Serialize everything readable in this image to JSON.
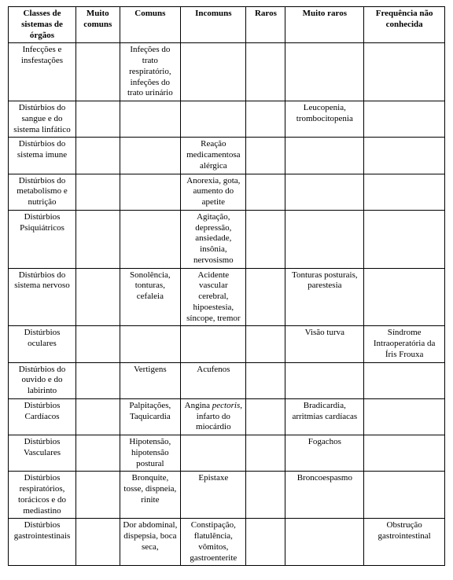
{
  "table": {
    "background_color": "#ffffff",
    "border_color": "#000000",
    "text_color": "#000000",
    "font_family": "Times New Roman",
    "header_fontsize": 11,
    "cell_fontsize": 11,
    "columns": [
      "Classes de sistemas de órgãos",
      "Muito comuns",
      "Comuns",
      "Incomuns",
      "Raros",
      "Muito raros",
      "Frequência não conhecida"
    ],
    "column_widths_pct": [
      15.5,
      10,
      14,
      15,
      9,
      18,
      18.5
    ],
    "rows": [
      {
        "class": "Infecções e insfestações",
        "muito_comuns": "",
        "comuns": "Infeções do trato respiratório, infeções do trato urinário",
        "incomuns": "",
        "raros": "",
        "muito_raros": "",
        "freq_nao_conhecida": ""
      },
      {
        "class": "Distúrbios do sangue e do sistema linfático",
        "muito_comuns": "",
        "comuns": "",
        "incomuns": "",
        "raros": "",
        "muito_raros": "Leucopenia, trombocitopenia",
        "freq_nao_conhecida": ""
      },
      {
        "class": "Distúrbios do sistema imune",
        "muito_comuns": "",
        "comuns": "",
        "incomuns": "Reação medicamentosa alérgica",
        "raros": "",
        "muito_raros": "",
        "freq_nao_conhecida": ""
      },
      {
        "class": "Distúrbios do metabolismo e nutrição",
        "muito_comuns": "",
        "comuns": "",
        "incomuns": "Anorexia, gota, aumento do apetite",
        "raros": "",
        "muito_raros": "",
        "freq_nao_conhecida": ""
      },
      {
        "class": "Distúrbios Psiquiátricos",
        "muito_comuns": "",
        "comuns": "",
        "incomuns": "Agitação, depressão, ansiedade, insônia, nervosismo",
        "raros": "",
        "muito_raros": "",
        "freq_nao_conhecida": ""
      },
      {
        "class": "Distúrbios do sistema nervoso",
        "muito_comuns": "",
        "comuns": "Sonolência, tonturas, cefaleia",
        "incomuns": "Acidente vascular cerebral, hipoestesia, síncope, tremor",
        "raros": "",
        "muito_raros": "Tonturas posturais, parestesia",
        "freq_nao_conhecida": ""
      },
      {
        "class": "Distúrbios oculares",
        "muito_comuns": "",
        "comuns": "",
        "incomuns": "",
        "raros": "",
        "muito_raros": "Visão turva",
        "freq_nao_conhecida": "Síndrome Intraoperatória da Íris Frouxa"
      },
      {
        "class": "Distúrbios do ouvido e do labirinto",
        "muito_comuns": "",
        "comuns": "Vertigens",
        "incomuns": "Acufenos",
        "raros": "",
        "muito_raros": "",
        "freq_nao_conhecida": ""
      },
      {
        "class": "Distúrbios Cardíacos",
        "muito_comuns": "",
        "comuns": "Palpitações, Taquicardia",
        "incomuns": "Angina pectoris, infarto do miocárdio",
        "raros": "",
        "muito_raros": "Bradicardia, arritmias cardíacas",
        "freq_nao_conhecida": ""
      },
      {
        "class": "Distúrbios Vasculares",
        "muito_comuns": "",
        "comuns": "Hipotensão, hipotensão postural",
        "incomuns": "",
        "raros": "",
        "muito_raros": "Fogachos",
        "freq_nao_conhecida": ""
      },
      {
        "class": "Distúrbios respiratórios, torácicos e do mediastino",
        "muito_comuns": "",
        "comuns": "Bronquite, tosse, dispneia, rinite",
        "incomuns": "Epistaxe",
        "raros": "",
        "muito_raros": "Broncoespasmo",
        "freq_nao_conhecida": ""
      },
      {
        "class": "Distúrbios gastrointestinais",
        "muito_comuns": "",
        "comuns": "Dor abdominal, dispepsia, boca seca,",
        "incomuns": "Constipação, flatulência, vômitos, gastroenterite",
        "raros": "",
        "muito_raros": "",
        "freq_nao_conhecida": "Obstrução gastrointestinal"
      }
    ]
  }
}
